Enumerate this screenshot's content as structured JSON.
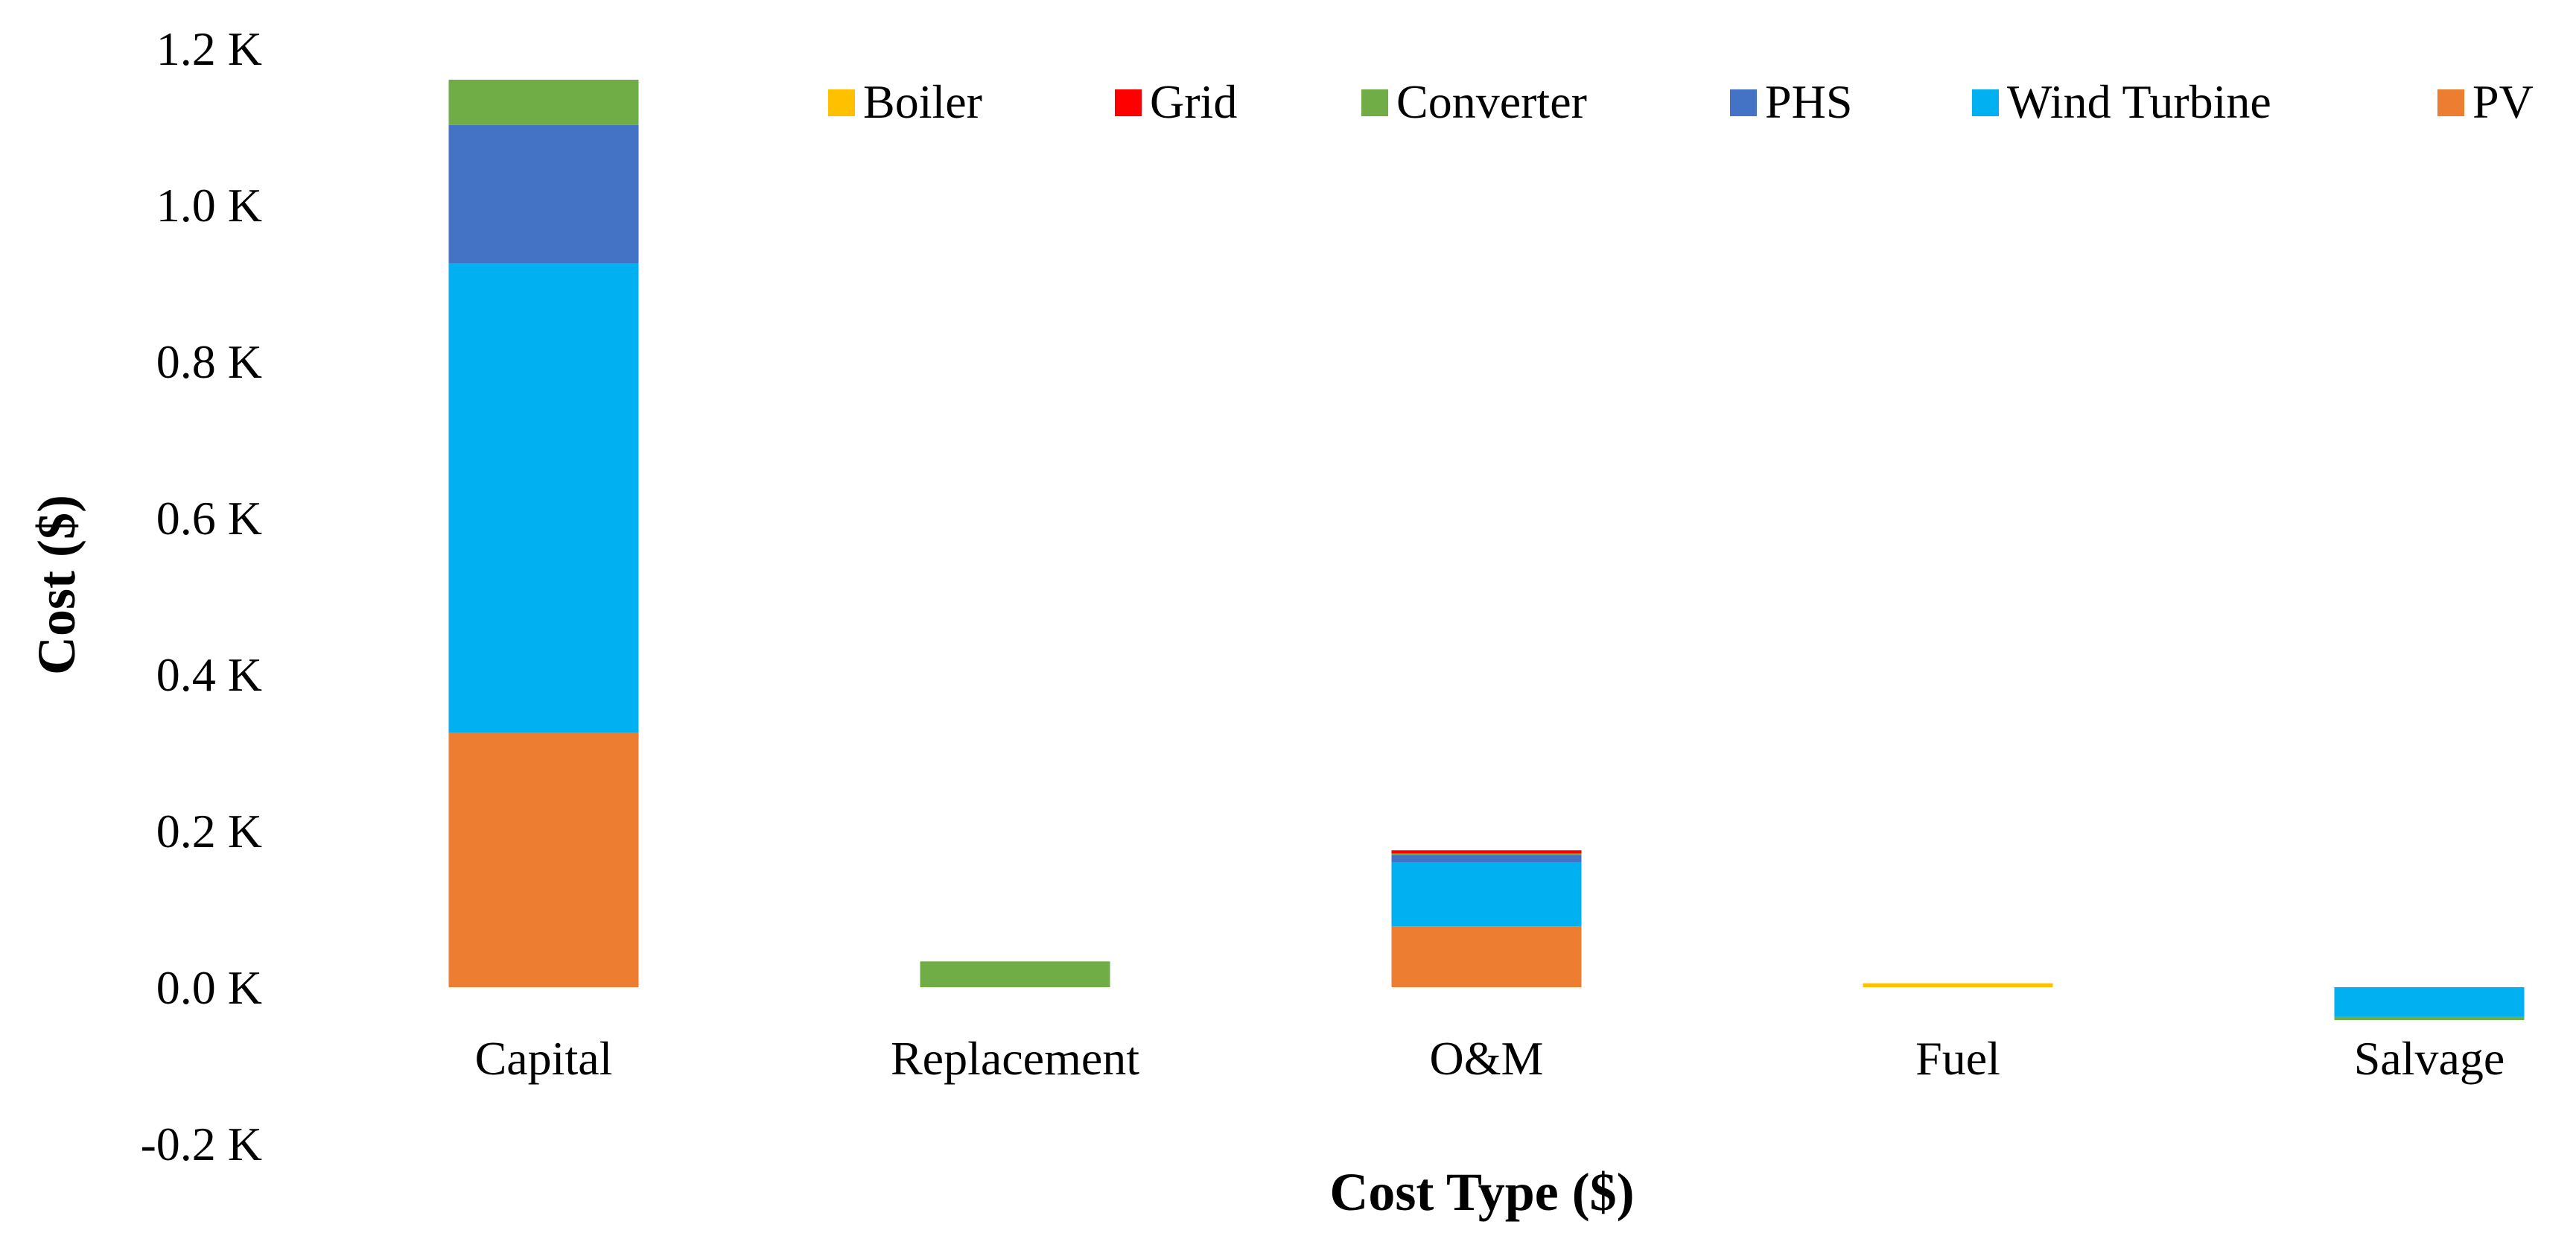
{
  "chart_data": {
    "type": "bar",
    "stacked": true,
    "title": "",
    "xlabel": "Cost Type ($)",
    "ylabel": "Cost ($)",
    "ylim": [
      -0.2,
      1.2
    ],
    "yticks": [
      {
        "value": -0.2,
        "label": "-0.2 K"
      },
      {
        "value": 0.0,
        "label": "0.0 K"
      },
      {
        "value": 0.2,
        "label": "0.2 K"
      },
      {
        "value": 0.4,
        "label": "0.4 K"
      },
      {
        "value": 0.6,
        "label": "0.6 K"
      },
      {
        "value": 0.8,
        "label": "0.8 K"
      },
      {
        "value": 1.0,
        "label": "1.0 K"
      },
      {
        "value": 1.2,
        "label": "1.2 K"
      }
    ],
    "grid": false,
    "legend_position": "top",
    "categories": [
      "Capital",
      "Replacement",
      "O&M",
      "Fuel",
      "Salvage"
    ],
    "series": [
      {
        "name": "PV",
        "color": "#ED7D31",
        "values": [
          0.325,
          0.0,
          0.078,
          0.0,
          0.0
        ]
      },
      {
        "name": "Wind Turbine",
        "color": "#00B0F0",
        "values": [
          0.6,
          0.0,
          0.082,
          0.0,
          -0.038
        ]
      },
      {
        "name": "PHS",
        "color": "#4472C4",
        "values": [
          0.177,
          0.0,
          0.009,
          0.0,
          0.0
        ]
      },
      {
        "name": "Converter",
        "color": "#70AD47",
        "values": [
          0.058,
          0.033,
          0.002,
          0.0,
          -0.004
        ]
      },
      {
        "name": "Grid",
        "color": "#FF0000",
        "values": [
          0.0,
          0.0,
          0.004,
          0.0,
          0.0
        ]
      },
      {
        "name": "Boiler",
        "color": "#FFC000",
        "values": [
          0.0,
          0.0,
          0.0,
          0.005,
          0.0
        ]
      }
    ],
    "legend_order": [
      "Boiler",
      "Grid",
      "Converter",
      "PHS",
      "Wind Turbine",
      "PV"
    ]
  }
}
